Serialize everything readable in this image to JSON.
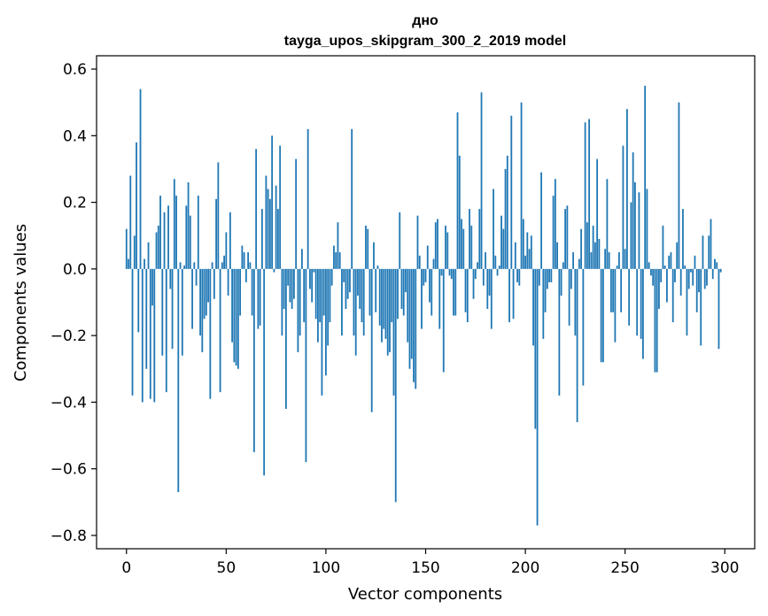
{
  "chart_data": {
    "type": "bar",
    "title": "дно",
    "subtitle": "tayga_upos_skipgram_300_2_2019 model",
    "xlabel": "Vector components",
    "ylabel": "Components values",
    "xlim": [
      -15,
      315
    ],
    "ylim": [
      -0.84,
      0.64
    ],
    "xticks": [
      0,
      50,
      100,
      150,
      200,
      250,
      300
    ],
    "xtick_labels": [
      "0",
      "50",
      "100",
      "150",
      "200",
      "250",
      "300"
    ],
    "yticks": [
      -0.8,
      -0.6,
      -0.4,
      -0.2,
      0.0,
      0.2,
      0.4,
      0.6
    ],
    "ytick_labels": [
      "−0.8",
      "−0.6",
      "−0.4",
      "−0.2",
      "0.0",
      "0.2",
      "0.4",
      "0.6"
    ],
    "grid": false,
    "bar_color": "#1f77b4",
    "x_start": 0,
    "values": [
      0.12,
      0.03,
      0.28,
      -0.38,
      0.1,
      0.38,
      -0.19,
      0.54,
      -0.4,
      0.03,
      -0.3,
      0.08,
      -0.39,
      -0.11,
      -0.4,
      0.11,
      0.13,
      0.22,
      -0.26,
      0.17,
      -0.37,
      0.19,
      -0.06,
      -0.24,
      0.27,
      0.22,
      -0.67,
      0.02,
      -0.26,
      0.01,
      0.19,
      0.26,
      0.16,
      -0.18,
      0.02,
      -0.05,
      0.22,
      -0.2,
      -0.25,
      -0.15,
      -0.14,
      -0.1,
      -0.39,
      0.02,
      -0.09,
      0.21,
      0.32,
      -0.37,
      0.02,
      0.04,
      0.11,
      -0.08,
      0.17,
      -0.22,
      -0.28,
      -0.29,
      -0.3,
      -0.14,
      0.07,
      0.05,
      -0.04,
      0.05,
      0.02,
      -0.14,
      -0.55,
      0.36,
      -0.18,
      -0.17,
      0.18,
      -0.62,
      0.28,
      0.24,
      0.21,
      0.4,
      -0.01,
      0.25,
      0.18,
      0.37,
      -0.2,
      -0.12,
      -0.42,
      -0.05,
      -0.1,
      -0.12,
      -0.09,
      0.33,
      -0.25,
      -0.2,
      0.06,
      -0.16,
      -0.58,
      0.42,
      -0.06,
      -0.1,
      -0.01,
      -0.15,
      -0.22,
      -0.16,
      -0.38,
      -0.14,
      -0.32,
      -0.23,
      -0.16,
      -0.05,
      0.07,
      0.05,
      0.14,
      0.05,
      -0.2,
      -0.04,
      -0.12,
      -0.09,
      -0.07,
      0.42,
      -0.2,
      -0.26,
      -0.08,
      -0.12,
      -0.16,
      -0.2,
      0.13,
      0.12,
      -0.14,
      -0.43,
      0.08,
      -0.13,
      0.01,
      -0.17,
      -0.22,
      -0.18,
      -0.21,
      -0.26,
      -0.25,
      -0.16,
      -0.38,
      -0.7,
      -0.15,
      0.17,
      -0.12,
      -0.14,
      -0.07,
      -0.22,
      -0.3,
      -0.27,
      -0.34,
      -0.36,
      0.16,
      0.04,
      -0.18,
      -0.05,
      -0.04,
      0.07,
      -0.1,
      -0.14,
      0.03,
      0.14,
      0.15,
      -0.18,
      -0.02,
      -0.31,
      0.13,
      0.11,
      -0.02,
      -0.03,
      -0.14,
      -0.14,
      0.47,
      0.34,
      0.15,
      0.12,
      -0.13,
      -0.16,
      0.18,
      0.13,
      -0.09,
      -0.03,
      0.02,
      0.18,
      0.53,
      -0.05,
      0.05,
      -0.12,
      -0.08,
      -0.18,
      0.24,
      0.04,
      -0.02,
      0.01,
      0.16,
      0.12,
      0.3,
      0.34,
      -0.16,
      0.46,
      -0.15,
      0.08,
      -0.04,
      -0.05,
      0.5,
      0.15,
      0.04,
      0.11,
      0.06,
      0.1,
      -0.23,
      -0.48,
      -0.77,
      -0.05,
      0.29,
      -0.21,
      -0.13,
      -0.06,
      -0.04,
      -0.04,
      0.22,
      0.27,
      0.08,
      -0.38,
      -0.08,
      0.02,
      0.18,
      0.19,
      -0.17,
      -0.06,
      0.05,
      -0.2,
      -0.46,
      0.03,
      0.12,
      -0.35,
      0.44,
      0.14,
      0.45,
      0.05,
      0.13,
      0.08,
      0.33,
      0.09,
      -0.28,
      -0.28,
      0.06,
      0.27,
      0.05,
      -0.13,
      -0.13,
      -0.22,
      0.01,
      0.05,
      -0.13,
      0.37,
      0.06,
      0.48,
      -0.17,
      0.2,
      0.35,
      0.26,
      -0.2,
      0.23,
      -0.21,
      -0.27,
      0.55,
      0.24,
      0.02,
      -0.02,
      -0.05,
      -0.31,
      -0.31,
      -0.12,
      -0.04,
      0.13,
      0.01,
      -0.1,
      0.04,
      0.05,
      -0.16,
      -0.04,
      0.08,
      0.5,
      -0.08,
      0.18,
      0.01,
      -0.2,
      -0.06,
      -0.01,
      -0.05,
      0.04,
      -0.13,
      -0.07,
      -0.23,
      0.1,
      -0.06,
      -0.05,
      0.1,
      0.15,
      -0.03,
      0.03,
      0.02,
      -0.24,
      -0.01
    ]
  }
}
